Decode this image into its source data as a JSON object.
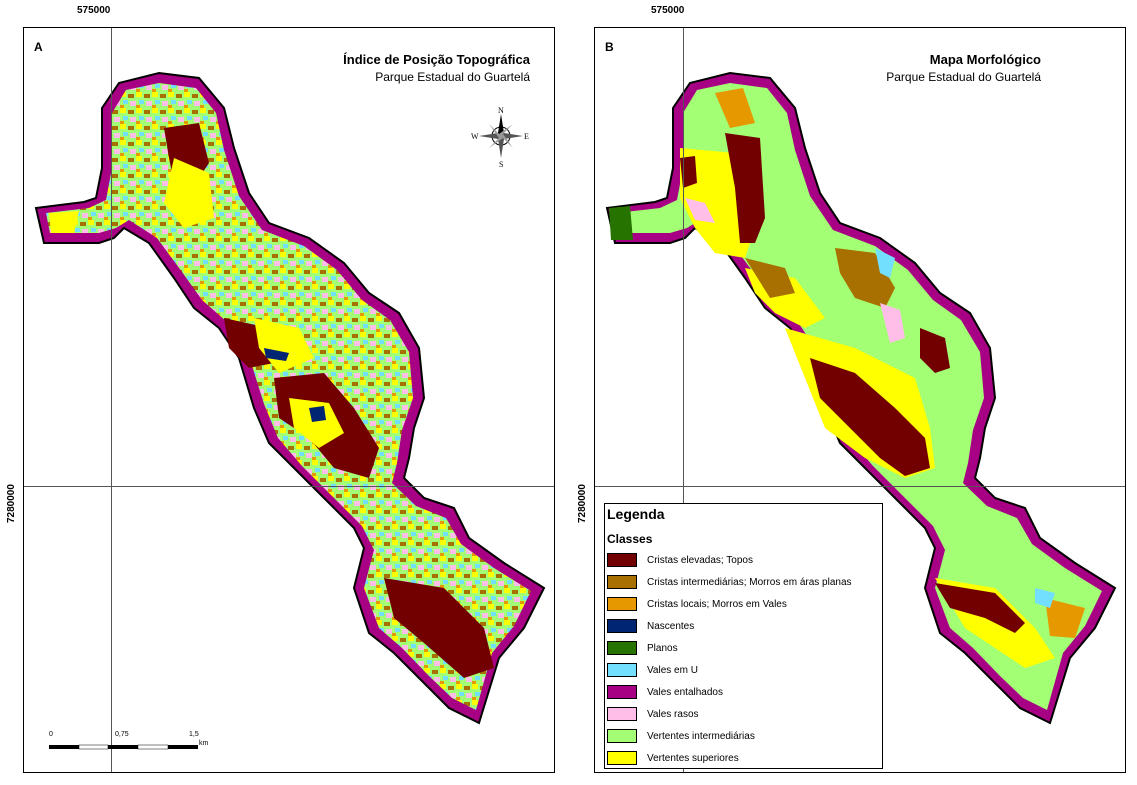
{
  "coordinates": {
    "easting": "575000",
    "northing": "7280000"
  },
  "panel_a": {
    "letter": "A",
    "title": "Índice de Posição Topográfica",
    "subtitle": "Parque Estadual do Guartelá",
    "compass": {
      "n": "N",
      "s": "S",
      "e": "E",
      "w": "W"
    },
    "scale": {
      "ticks": [
        "0",
        "0,75",
        "1,5"
      ],
      "unit": "km"
    }
  },
  "panel_b": {
    "letter": "B",
    "title": "Mapa Morfológico",
    "subtitle": "Parque Estadual do Guartelá"
  },
  "legend": {
    "title": "Legenda",
    "subtitle": "Classes",
    "items": [
      {
        "label": "Cristas elevadas; Topos",
        "color": "#730000"
      },
      {
        "label": "Cristas intermediárias; Morros em áras planas",
        "color": "#a87000"
      },
      {
        "label": "Cristas locais; Morros em Vales",
        "color": "#e69800"
      },
      {
        "label": "Nascentes",
        "color": "#002673"
      },
      {
        "label": "Planos",
        "color": "#267300"
      },
      {
        "label": "Vales em U",
        "color": "#73dfff"
      },
      {
        "label": "Vales entalhados",
        "color": "#a80084"
      },
      {
        "label": "Vales rasos",
        "color": "#ffbee8"
      },
      {
        "label": "Vertentes intermediárias",
        "color": "#a3ff73"
      },
      {
        "label": "Vertentes superiores",
        "color": "#ffff00"
      }
    ]
  }
}
